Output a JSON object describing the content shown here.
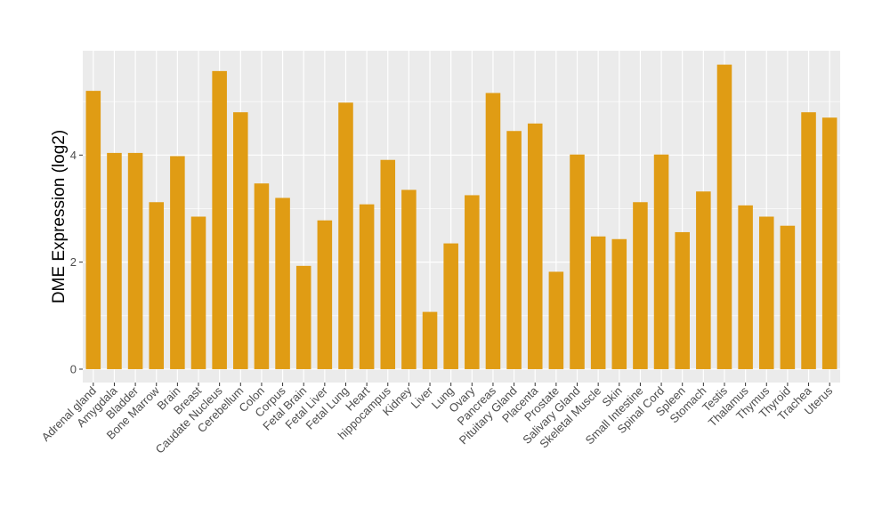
{
  "chart_data": {
    "type": "bar",
    "ylabel": "DME Expression (log2)",
    "xlabel": "",
    "ylim": [
      -0.25,
      5.95
    ],
    "yticks": [
      0,
      2,
      4
    ],
    "grid": true,
    "bar_color": "#E09C14",
    "panel_color": "#EBEBEB",
    "gridline_color": "#FFFFFF",
    "categories": [
      "Adrenal gland",
      "Amygdala",
      "Bladder",
      "Bone Marrow",
      "Brain",
      "Breast",
      "Caudate Nucleus",
      "Cerebellum",
      "Colon",
      "Corpus",
      "Fetal Brain",
      "Fetal Liver",
      "Fetal Lung",
      "Heart",
      "hippocampus",
      "Kidney",
      "Liver",
      "Lung",
      "Ovary",
      "Pancreas",
      "Pituitary Gland",
      "Placenta",
      "Prostate",
      "Salivary Gland",
      "Skeletal Muscle",
      "Skin",
      "Small Intestine",
      "Spinal Cord",
      "Spleen",
      "Stomach",
      "Testis",
      "Thalamus",
      "Thymus",
      "Thyroid",
      "Trachea",
      "Uterus"
    ],
    "values": [
      5.2,
      4.04,
      4.04,
      3.12,
      3.98,
      2.85,
      5.57,
      4.8,
      3.47,
      3.2,
      1.93,
      2.78,
      4.98,
      3.08,
      3.91,
      3.35,
      1.07,
      2.35,
      3.25,
      5.16,
      4.45,
      4.59,
      1.82,
      4.01,
      2.48,
      2.43,
      3.12,
      4.01,
      2.56,
      3.32,
      5.69,
      3.06,
      2.85,
      2.68,
      4.8,
      4.7
    ]
  }
}
